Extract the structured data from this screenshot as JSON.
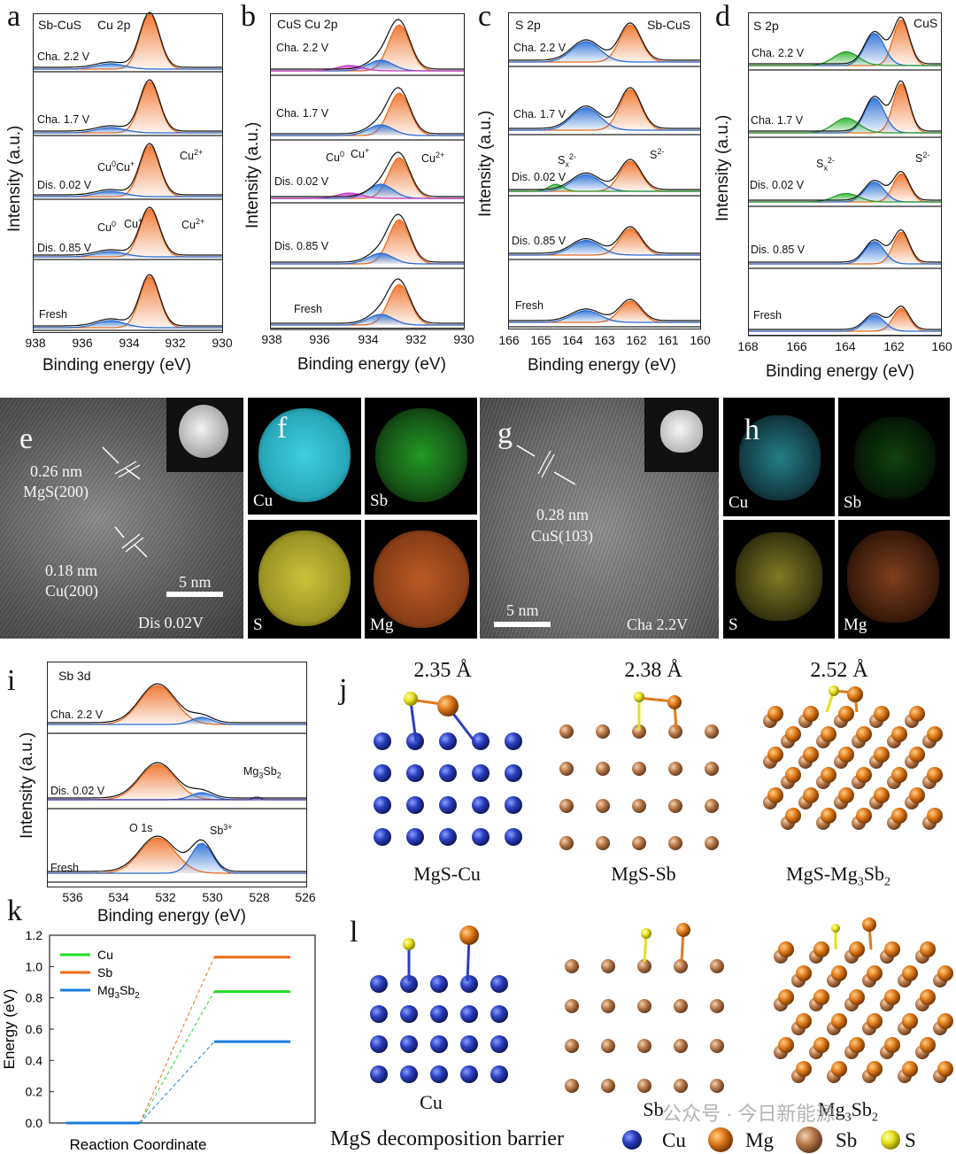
{
  "panels": {
    "a": {
      "letter": "a",
      "header_left": "Sb-CuS",
      "header_right": "Cu 2p",
      "traces": [
        "Cha. 2.2 V",
        "Cha. 1.7 V",
        "Dis. 0.02 V",
        "Dis. 0.85 V",
        "Fresh"
      ],
      "ylabel": "Intensity (a.u.)",
      "xlabel": "Binding energy (eV)",
      "ticks": [
        "938",
        "936",
        "934",
        "932",
        "930"
      ]
    },
    "b": {
      "letter": "b",
      "header": "CuS Cu 2p",
      "traces": [
        "Cha. 2.2 V",
        "Cha. 1.7 V",
        "Dis. 0.02 V",
        "Dis. 0.85 V",
        "Fresh"
      ],
      "ylabel": "Intensity (a.u.)",
      "xlabel": "Binding energy (eV)",
      "ticks": [
        "938",
        "936",
        "934",
        "932",
        "930"
      ]
    },
    "c": {
      "letter": "c",
      "header_left": "S 2p",
      "header_right": "Sb-CuS",
      "traces": [
        "Cha. 2.2 V",
        "Cha. 1.7 V",
        "Dis. 0.02 V",
        "Dis. 0.85 V",
        "Fresh"
      ],
      "ylabel": "Intensity (a.u.)",
      "xlabel": "Binding energy (eV)",
      "ticks": [
        "166",
        "165",
        "164",
        "163",
        "162",
        "161",
        "160"
      ]
    },
    "d": {
      "letter": "d",
      "header_left": "S 2p",
      "header_right": "CuS",
      "traces": [
        "Cha. 2.2 V",
        "Cha. 1.7 V",
        "Dis. 0.02 V",
        "Dis. 0.85 V",
        "Fresh"
      ],
      "ylabel": "Intensity (a.u.)",
      "xlabel": "Binding energy (eV)",
      "ticks": [
        "168",
        "166",
        "164",
        "162",
        "160"
      ]
    },
    "annotations": {
      "cu0": "Cu",
      "cu0_sup": "0",
      "cup": "Cu",
      "cup_sup": "+",
      "cu2": "Cu",
      "cu2_sup": "2+",
      "sx": "S",
      "sx_sub": "x",
      "sx_sup": "2-",
      "s2": "S",
      "s2_sup": "2-"
    },
    "e": {
      "letter": "e",
      "d1": "0.26 nm",
      "p1": "MgS(200)",
      "d2": "0.18 nm",
      "p2": "Cu(200)",
      "scale": "5 nm",
      "state": "Dis 0.02V"
    },
    "f": {
      "letter": "f",
      "maps": [
        "Cu",
        "Sb",
        "S",
        "Mg"
      ]
    },
    "g": {
      "letter": "g",
      "d1": "0.28 nm",
      "p1": "CuS(103)",
      "scale": "5 nm",
      "state": "Cha 2.2V"
    },
    "h": {
      "letter": "h",
      "maps": [
        "Cu",
        "Sb",
        "S",
        "Mg"
      ]
    },
    "i": {
      "letter": "i",
      "header": "Sb 3d",
      "traces": [
        "Cha. 2.2 V",
        "Dis. 0.02 V",
        "Fresh"
      ],
      "o1s": "O 1s",
      "sb3": "Sb",
      "sb3_sup": "3+",
      "mg3sb2": "Mg",
      "mg3sb2_sub1": "3",
      "mg3sb2_mid": "Sb",
      "mg3sb2_sub2": "2",
      "ylabel": "Intensity (a.u.)",
      "xlabel": "Binding energy (eV)",
      "ticks": [
        "536",
        "534",
        "532",
        "530",
        "528",
        "526"
      ]
    },
    "j": {
      "letter": "j",
      "structures": [
        {
          "dist": "2.35 Å",
          "name": "MgS-Cu"
        },
        {
          "dist": "2.38 Å",
          "name": "MgS-Sb"
        },
        {
          "dist": "2.52 Å",
          "name": "MgS-Mg",
          "sub1": "3",
          "mid": "Sb",
          "sub2": "2"
        }
      ]
    },
    "k": {
      "letter": "k"
    },
    "l": {
      "letter": "l",
      "names": [
        "Cu",
        "Sb",
        "Mg",
        "3",
        "Sb",
        "2"
      ],
      "caption": "MgS decomposition barrier",
      "legend": [
        "Cu",
        "Mg",
        "Sb",
        "S"
      ],
      "watermark": "公众号 · 今日新能源"
    }
  },
  "colors": {
    "cu": "#2b3fc0",
    "mg": "#e07a1a",
    "sb": "#b97a4a",
    "s": "#e6e01c",
    "orange_peak": "#f07d3a",
    "blue_peak": "#3a7ad8",
    "magenta": "#d23ad2",
    "green": "#38b838"
  },
  "chart_data": {
    "type": "line",
    "title": "",
    "xlabel": "Reaction Coordinate",
    "ylabel": "Energy (eV)",
    "ylim": [
      0.0,
      1.2
    ],
    "yticks": [
      "0.0",
      "0.2",
      "0.4",
      "0.6",
      "0.8",
      "1.0",
      "1.2"
    ],
    "series": [
      {
        "name": "Cu",
        "color": "#22dd22",
        "initial": 0.0,
        "barrier": 0.84
      },
      {
        "name": "Sb",
        "color": "#ee6a1a",
        "initial": 0.0,
        "barrier": 1.06
      },
      {
        "name": "Mg3Sb2",
        "label_main": "Mg",
        "label_sub1": "3",
        "label_mid": "Sb",
        "label_sub2": "2",
        "color": "#1a7de0",
        "initial": 0.0,
        "barrier": 0.52
      }
    ]
  }
}
